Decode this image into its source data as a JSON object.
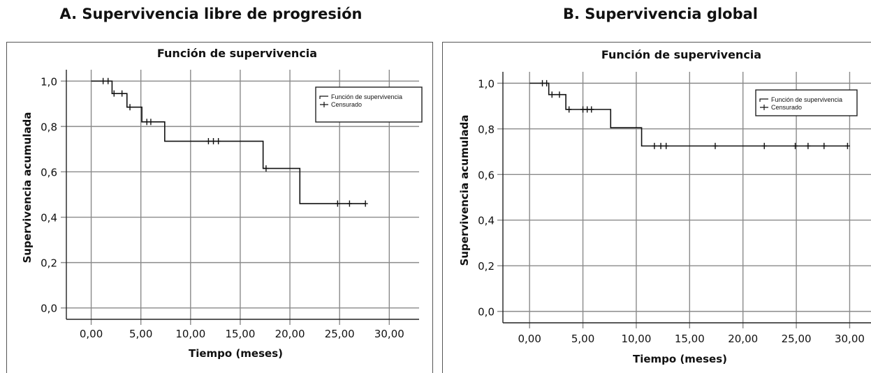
{
  "chart_data": [
    {
      "type": "line",
      "panel_title": "A. Supervivencia libre de progresión",
      "title": "Función de supervivencia",
      "xlabel": "Tiempo (meses)",
      "ylabel": "Supervivencia acumulada",
      "xlim": [
        -2.5,
        33
      ],
      "ylim": [
        -0.05,
        1.05
      ],
      "x_ticks": [
        "0,00",
        "5,00",
        "10,00",
        "15,00",
        "20,00",
        "25,00",
        "30,00"
      ],
      "x_tick_values": [
        0,
        5,
        10,
        15,
        20,
        25,
        30
      ],
      "y_ticks": [
        "0,0",
        "0,2",
        "0,4",
        "0,6",
        "0,8",
        "1,0"
      ],
      "y_tick_values": [
        0,
        0.2,
        0.4,
        0.6,
        0.8,
        1.0
      ],
      "grid": true,
      "legend": [
        "Función de supervivencia",
        "Censurado"
      ],
      "legend_position": "top-right",
      "series": [
        {
          "name": "Función de supervivencia",
          "steps": [
            [
              0,
              1.0
            ],
            [
              2.1,
              0.945
            ],
            [
              3.6,
              0.885
            ],
            [
              5.1,
              0.82
            ],
            [
              7.4,
              0.735
            ],
            [
              17.3,
              0.615
            ],
            [
              21.0,
              0.46
            ],
            [
              27.6,
              0.46
            ]
          ],
          "censored": [
            [
              1.2,
              1.0
            ],
            [
              1.7,
              1.0
            ],
            [
              2.3,
              0.945
            ],
            [
              3.1,
              0.945
            ],
            [
              3.9,
              0.885
            ],
            [
              5.6,
              0.82
            ],
            [
              6.0,
              0.82
            ],
            [
              11.8,
              0.735
            ],
            [
              12.3,
              0.735
            ],
            [
              12.8,
              0.735
            ],
            [
              17.6,
              0.615
            ],
            [
              24.8,
              0.46
            ],
            [
              26.0,
              0.46
            ],
            [
              27.6,
              0.46
            ]
          ]
        }
      ]
    },
    {
      "type": "line",
      "panel_title": "B. Supervivencia global",
      "title": "Función de supervivencia",
      "xlabel": "Tiempo (meses)",
      "ylabel": "Supervivencia acumulada",
      "xlim": [
        -2.5,
        32
      ],
      "ylim": [
        -0.05,
        1.05
      ],
      "x_ticks": [
        "0,00",
        "5,00",
        "10,00",
        "15,00",
        "20,00",
        "25,00",
        "30,00"
      ],
      "x_tick_values": [
        0,
        5,
        10,
        15,
        20,
        25,
        30
      ],
      "y_ticks": [
        "0,0",
        "0,2",
        "0,4",
        "0,6",
        "0,8",
        "1,0"
      ],
      "y_tick_values": [
        0,
        0.2,
        0.4,
        0.6,
        0.8,
        1.0
      ],
      "grid": true,
      "legend": [
        "Función de supervivencia",
        "Censurado"
      ],
      "legend_position": "top-right",
      "series": [
        {
          "name": "Función de supervivencia",
          "steps": [
            [
              0,
              1.0
            ],
            [
              1.8,
              0.95
            ],
            [
              3.4,
              0.885
            ],
            [
              7.6,
              0.805
            ],
            [
              10.5,
              0.725
            ],
            [
              29.8,
              0.725
            ]
          ],
          "censored": [
            [
              1.2,
              1.0
            ],
            [
              1.6,
              1.0
            ],
            [
              2.1,
              0.95
            ],
            [
              2.8,
              0.95
            ],
            [
              3.7,
              0.885
            ],
            [
              5.0,
              0.885
            ],
            [
              5.4,
              0.885
            ],
            [
              5.8,
              0.885
            ],
            [
              11.7,
              0.725
            ],
            [
              12.3,
              0.725
            ],
            [
              12.8,
              0.725
            ],
            [
              17.4,
              0.725
            ],
            [
              22.0,
              0.725
            ],
            [
              24.9,
              0.725
            ],
            [
              26.1,
              0.725
            ],
            [
              27.6,
              0.725
            ],
            [
              29.8,
              0.725
            ]
          ]
        }
      ]
    }
  ]
}
